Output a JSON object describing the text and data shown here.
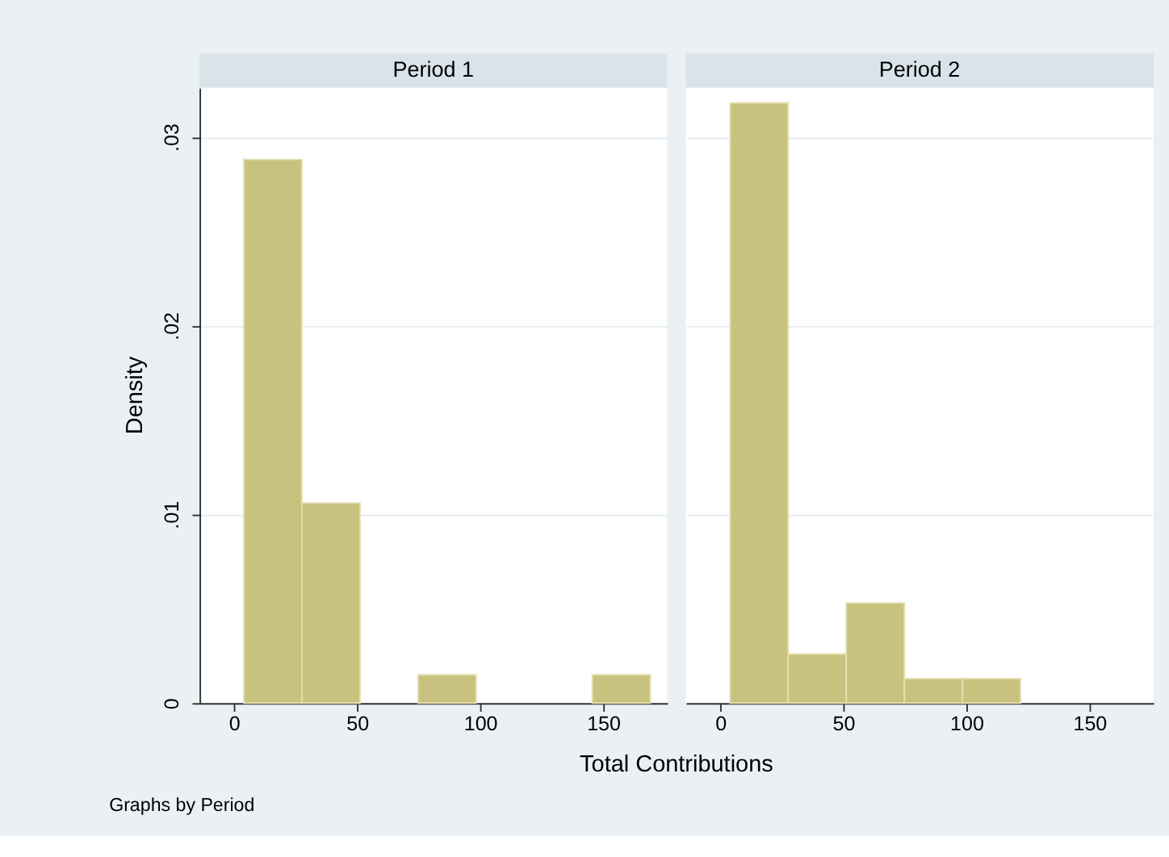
{
  "chart_data": [
    {
      "type": "histogram",
      "title": "Period 1",
      "ylabel": "Density",
      "xlabel": "Total Contributions",
      "annotations": [
        "Graphs by Period"
      ],
      "bins": [
        4,
        27.6,
        51.2,
        74.8,
        98.4,
        122,
        145.6,
        169.2
      ],
      "values": [
        0.0288,
        0.0106,
        0,
        0.0015,
        0,
        0,
        0.0015
      ],
      "color": "#c9c27f",
      "xlim": [
        -14,
        176
      ],
      "xticks": [
        0,
        50,
        100,
        150
      ],
      "ylim": [
        0,
        0.0326
      ],
      "yticks": [
        {
          "value": 0,
          "label": "0"
        },
        {
          "value": 0.01,
          "label": ".01"
        },
        {
          "value": 0.02,
          "label": ".02"
        },
        {
          "value": 0.03,
          "label": ".03"
        }
      ],
      "grid": "y"
    },
    {
      "type": "histogram",
      "title": "Period 2",
      "bins": [
        4,
        27.6,
        51.2,
        74.8,
        98.4,
        122,
        145.6,
        169.2
      ],
      "values": [
        0.0318,
        0.0026,
        0.0053,
        0.0013,
        0.0013,
        0,
        0
      ],
      "color": "#c9c27f",
      "xlim": [
        -14,
        176
      ],
      "xticks": [
        0,
        50,
        100,
        150
      ],
      "ylim": [
        0,
        0.0326
      ],
      "yticks": [
        {
          "value": 0,
          "label": null
        },
        {
          "value": 0.01,
          "label": null
        },
        {
          "value": 0.02,
          "label": null
        },
        {
          "value": 0.03,
          "label": null
        }
      ],
      "grid": "y",
      "tick_labels": "x"
    }
  ]
}
